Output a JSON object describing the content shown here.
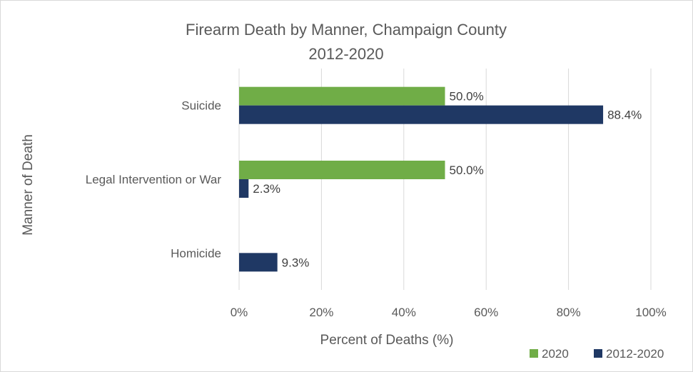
{
  "chart_data": {
    "type": "bar",
    "orientation": "horizontal",
    "title_lines": [
      "Firearm Death by Manner, Champaign County",
      "2012-2020"
    ],
    "xlabel": "Percent of Deaths (%)",
    "ylabel": "Manner of Death",
    "categories": [
      "Suicide",
      "Legal Intervention or War",
      "Homicide"
    ],
    "series": [
      {
        "name": "2020",
        "color": "#70ad47",
        "values": [
          50.0,
          50.0,
          0
        ],
        "labels": [
          "50.0%",
          "50.0%",
          ""
        ]
      },
      {
        "name": "2012-2020",
        "color": "#1f3864",
        "values": [
          88.4,
          2.3,
          9.3
        ],
        "labels": [
          "88.4%",
          "2.3%",
          "9.3%"
        ]
      }
    ],
    "xlim": [
      0,
      100
    ],
    "xticks": [
      0,
      20,
      40,
      60,
      80,
      100
    ],
    "xtick_labels": [
      "0%",
      "20%",
      "40%",
      "60%",
      "80%",
      "100%"
    ],
    "grid": true,
    "legend_position": "bottom-right"
  }
}
